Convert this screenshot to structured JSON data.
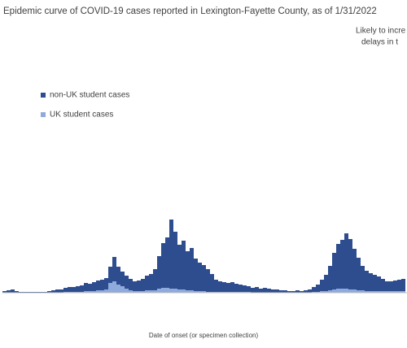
{
  "chart_data": {
    "type": "stacked_bar",
    "title": "Epidemic curve of COVID-19 cases reported in Lexington-Fayette County, as of 1/31/2022",
    "annotation": [
      "Likely to incre",
      "delays in t"
    ],
    "x_label": "Date of onset (or specimen collection)",
    "categories": [
      null,
      null,
      null,
      null,
      null,
      null,
      null,
      null,
      null,
      null,
      null,
      null,
      null,
      null,
      null,
      null,
      null,
      null,
      null,
      null,
      null,
      null,
      null,
      null,
      null,
      null,
      null,
      null,
      null,
      null,
      null,
      null,
      null,
      null,
      null,
      null,
      null,
      null,
      null,
      null,
      null,
      null,
      null,
      null,
      null,
      null,
      null,
      null,
      null,
      null,
      null,
      null,
      null,
      null,
      null,
      null,
      null,
      null,
      null,
      null,
      null,
      null,
      null,
      null,
      null,
      null,
      null,
      null,
      null,
      null,
      null,
      null,
      null,
      null,
      null,
      null,
      null,
      null,
      null,
      null,
      null,
      null,
      null,
      null,
      null,
      null,
      null,
      null,
      null,
      null,
      null,
      null,
      null,
      null,
      null,
      null,
      null,
      null,
      null
    ],
    "series": [
      {
        "name": "non-UK student cases",
        "color": "#2e4d8f",
        "values": [
          2,
          3,
          4,
          2,
          1,
          1,
          1,
          1,
          1,
          1,
          1,
          2,
          3,
          4,
          4,
          5,
          6,
          6,
          7,
          8,
          10,
          9,
          11,
          12,
          13,
          14,
          20,
          30,
          22,
          18,
          16,
          14,
          12,
          13,
          15,
          18,
          20,
          26,
          40,
          55,
          62,
          85,
          70,
          55,
          60,
          48,
          52,
          40,
          35,
          32,
          28,
          22,
          15,
          13,
          12,
          11,
          12,
          10,
          9,
          8,
          7,
          6,
          7,
          5,
          6,
          5,
          4,
          4,
          3,
          3,
          2,
          2,
          3,
          2,
          3,
          4,
          6,
          9,
          14,
          20,
          30,
          45,
          55,
          60,
          68,
          62,
          50,
          40,
          30,
          25,
          22,
          20,
          18,
          15,
          12,
          12,
          13,
          14,
          15
        ]
      },
      {
        "name": "UK student cases",
        "color": "#8faadc",
        "values": [
          0,
          0,
          0,
          0,
          0,
          0,
          0,
          0,
          0,
          0,
          0,
          0,
          0,
          0,
          0,
          1,
          1,
          1,
          1,
          1,
          2,
          2,
          2,
          3,
          3,
          4,
          12,
          14,
          10,
          8,
          5,
          3,
          2,
          2,
          2,
          3,
          3,
          3,
          5,
          6,
          6,
          5,
          5,
          4,
          4,
          3,
          3,
          2,
          2,
          2,
          1,
          1,
          1,
          1,
          1,
          1,
          1,
          1,
          1,
          1,
          1,
          0,
          0,
          0,
          0,
          0,
          0,
          0,
          0,
          0,
          0,
          0,
          0,
          0,
          0,
          0,
          1,
          1,
          2,
          2,
          3,
          4,
          5,
          5,
          5,
          4,
          4,
          3,
          3,
          2,
          2,
          2,
          2,
          2,
          2,
          2,
          2,
          2,
          2
        ]
      }
    ],
    "ylim": [
      0,
      100
    ]
  }
}
